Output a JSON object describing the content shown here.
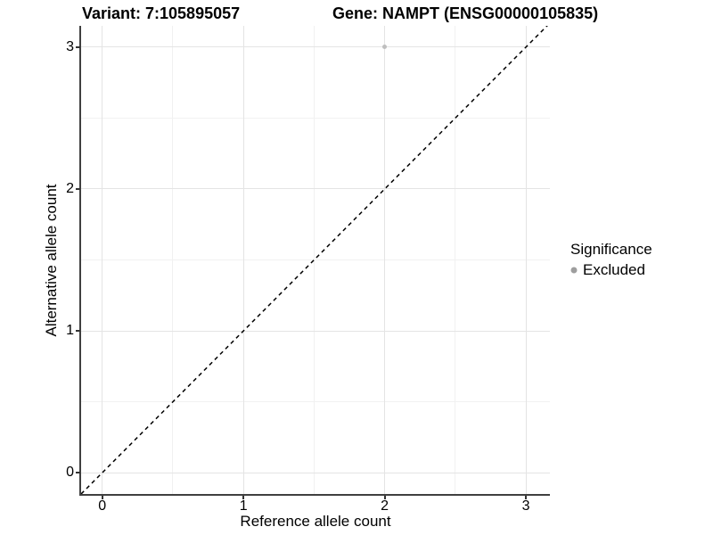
{
  "header": {
    "title_left": "Variant: 7:105895057",
    "title_right": "Gene: NAMPT (ENSG00000105835)"
  },
  "chart_data": {
    "type": "scatter",
    "title": "Variant: 7:105895057 / Gene: NAMPT (ENSG00000105835)",
    "xlabel": "Reference allele count",
    "ylabel": "Alternative allele count",
    "xlim": [
      -0.15,
      3.17
    ],
    "ylim": [
      -0.15,
      3.15
    ],
    "x_ticks": [
      0,
      1,
      2,
      3
    ],
    "y_ticks": [
      0,
      1,
      2,
      3
    ],
    "x_minor_ticks": [
      0.5,
      1.5,
      2.5
    ],
    "y_minor_ticks": [
      0.5,
      1.5,
      2.5
    ],
    "grid": "major+minor",
    "series": [
      {
        "name": "Excluded",
        "color": "#bfbfbf",
        "points": [
          {
            "x": 2,
            "y": 3
          }
        ]
      }
    ],
    "reference_line": {
      "slope": 1,
      "intercept": 0,
      "style": "dashed",
      "color": "#000000"
    },
    "legend": {
      "title": "Significance",
      "position": "right",
      "entries": [
        {
          "label": "Excluded",
          "color": "#9e9e9e"
        }
      ]
    }
  },
  "colors": {
    "point": "#bfbfbf",
    "legend_key": "#9e9e9e",
    "grid_major": "#e4e4e4",
    "grid_minor": "#f1f1f1",
    "axis_line": "#404040",
    "dashed_line": "#000000",
    "background": "#ffffff"
  }
}
